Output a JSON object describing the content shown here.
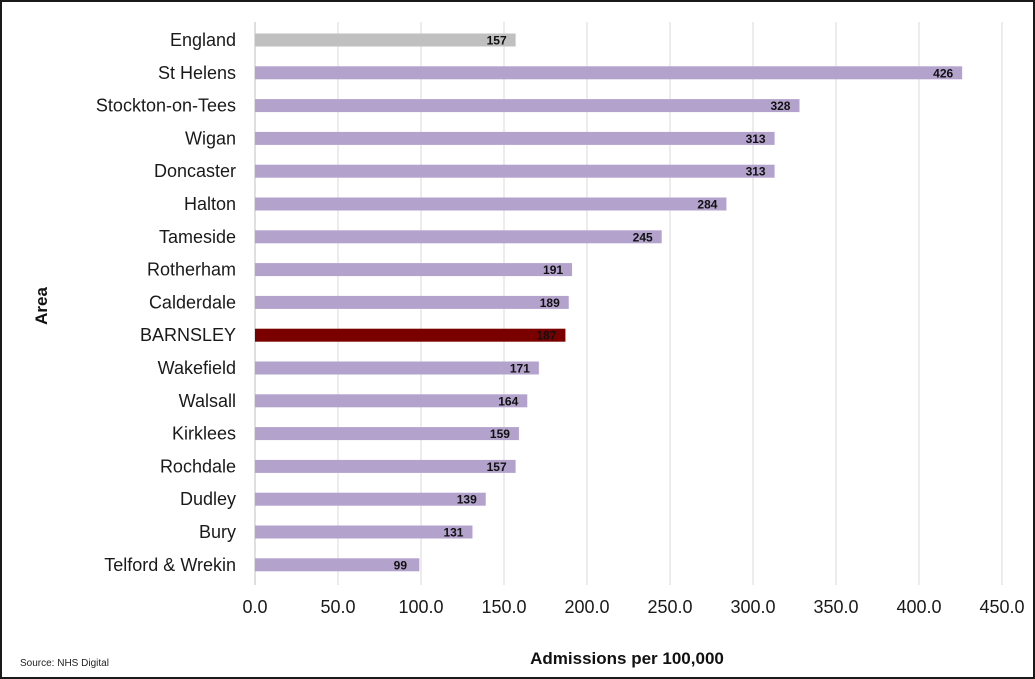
{
  "chart_data": {
    "type": "bar",
    "orientation": "horizontal",
    "categories": [
      "England",
      "St Helens",
      "Stockton-on-Tees",
      "Wigan",
      "Doncaster",
      "Halton",
      "Tameside",
      "Rotherham",
      "Calderdale",
      "BARNSLEY",
      "Wakefield",
      "Walsall",
      "Kirklees",
      "Rochdale",
      "Dudley",
      "Bury",
      "Telford & Wrekin"
    ],
    "values": [
      157,
      426,
      328,
      313,
      313,
      284,
      245,
      191,
      189,
      187,
      171,
      164,
      159,
      157,
      139,
      131,
      99
    ],
    "value_labels": [
      "157",
      "426",
      "328",
      "313",
      "313",
      "284",
      "245",
      "191",
      "189",
      "187",
      "171",
      "164",
      "159",
      "157",
      "139",
      "131",
      "99"
    ],
    "xlabel": "Admissions per 100,000",
    "ylabel": "Area",
    "xlim": [
      0,
      450
    ],
    "xticks": [
      0,
      50,
      100,
      150,
      200,
      250,
      300,
      350,
      400,
      450
    ],
    "xtick_labels": [
      "0.0",
      "50.0",
      "100.0",
      "150.0",
      "200.0",
      "250.0",
      "300.0",
      "350.0",
      "400.0",
      "450.0"
    ],
    "grid": "vertical",
    "colors": {
      "default": "#b3a3cc",
      "England": "#c0c0c0",
      "BARNSLEY": "#7a0000"
    },
    "highlight_label_color": "#ffffff"
  },
  "source": "Source: NHS Digital"
}
